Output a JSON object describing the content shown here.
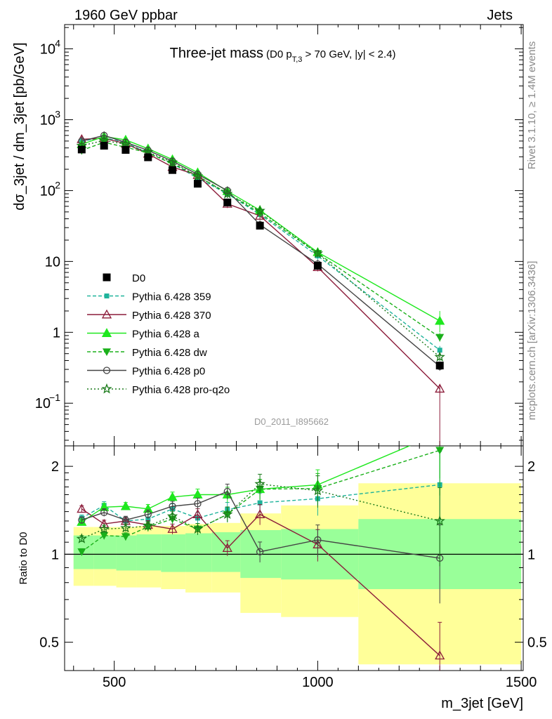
{
  "header": {
    "left": "1960 GeV ppbar",
    "right": "Jets",
    "side_top": "Rivet 3.1.10, ≥ 1.4M events",
    "side_bottom": "mcplots.cern.ch [arXiv:1306.3436]",
    "watermark": "D0_2011_I895662"
  },
  "chart_data": [
    {
      "panel": "main",
      "type": "line",
      "title": "Three-jet mass",
      "subtitle": "(D0 p_T,3 > 70 GeV, |y| < 2.4)",
      "title_parts": [
        "(D0 p",
        "T,3",
        " > 70 GeV, |y| < 2.4)"
      ],
      "xlabel": "m_3jet [GeV]",
      "ylabel": "dσ_3jet / dm_3jet [pb/GeV]",
      "xlim": [
        378,
        1505
      ],
      "ylim": [
        0.025,
        22000
      ],
      "yscale": "log",
      "xticks": [
        500,
        1000,
        1500
      ],
      "yticks": [
        {
          "v": 0.1,
          "base": "10",
          "exp": "−1"
        },
        {
          "v": 1,
          "base": "1",
          "exp": ""
        },
        {
          "v": 10,
          "base": "10",
          "exp": ""
        },
        {
          "v": 100,
          "base": "10",
          "exp": "2"
        },
        {
          "v": 1000,
          "base": "10",
          "exp": "3"
        },
        {
          "v": 10000,
          "base": "10",
          "exp": "4"
        }
      ],
      "legend_position": "lower-left",
      "reference": {
        "name": "D0",
        "x": [
          420,
          475,
          528,
          583,
          643,
          705,
          778,
          858,
          1000,
          1300
        ],
        "y": [
          380,
          430,
          375,
          295,
          195,
          125,
          68,
          32,
          8.7,
          0.34
        ]
      },
      "series": [
        {
          "name": "Pythia 6.428 359",
          "color": "#1fb39b",
          "dash": "5,3",
          "marker": "square",
          "y": [
            500,
            560,
            470,
            340,
            240,
            150,
            90,
            46,
            12,
            0.56
          ]
        },
        {
          "name": "Pythia 6.428 370",
          "color": "#8c1c3a",
          "dash": "",
          "marker": "triangle-open",
          "y": [
            530,
            545,
            460,
            330,
            215,
            165,
            65,
            44,
            8.3,
            0.16
          ]
        },
        {
          "name": "Pythia 6.428 a",
          "color": "#1ee81e",
          "dash": "",
          "marker": "triangle",
          "y": [
            450,
            580,
            520,
            390,
            275,
            180,
            98,
            53,
            13.5,
            1.45
          ]
        },
        {
          "name": "Pythia 6.428 dw",
          "color": "#1ab01a",
          "dash": "5,3",
          "marker": "triangle-down",
          "y": [
            370,
            480,
            410,
            340,
            240,
            160,
            92,
            48,
            13,
            0.85
          ]
        },
        {
          "name": "Pythia 6.428 p0",
          "color": "#444444",
          "dash": "",
          "marker": "circle-open",
          "y": [
            500,
            600,
            480,
            370,
            260,
            170,
            100,
            33,
            9.2,
            0.33
          ]
        },
        {
          "name": "Pythia 6.428 pro-q2o",
          "color": "#1a7a1a",
          "dash": "2,3",
          "marker": "star",
          "y": [
            430,
            510,
            450,
            350,
            250,
            160,
            90,
            52,
            13,
            0.45
          ]
        }
      ]
    },
    {
      "panel": "ratio",
      "type": "line",
      "ylabel": "Ratio to D0",
      "xlim": [
        378,
        1505
      ],
      "ylim": [
        0.4,
        2.35
      ],
      "yscale": "log",
      "yticks": [
        0.5,
        1,
        2
      ],
      "ytick_labels": [
        "0.5",
        "1",
        "2"
      ],
      "bins": [
        {
          "x0": 400,
          "x1": 450,
          "green": [
            0.89,
            1.16
          ],
          "yellow": [
            0.78,
            1.24
          ]
        },
        {
          "x0": 450,
          "x1": 505,
          "green": [
            0.89,
            1.16
          ],
          "yellow": [
            0.78,
            1.24
          ]
        },
        {
          "x0": 505,
          "x1": 555,
          "green": [
            0.88,
            1.16
          ],
          "yellow": [
            0.77,
            1.24
          ]
        },
        {
          "x0": 555,
          "x1": 615,
          "green": [
            0.88,
            1.17
          ],
          "yellow": [
            0.77,
            1.25
          ]
        },
        {
          "x0": 615,
          "x1": 675,
          "green": [
            0.87,
            1.17
          ],
          "yellow": [
            0.76,
            1.25
          ]
        },
        {
          "x0": 675,
          "x1": 740,
          "green": [
            0.87,
            1.18
          ],
          "yellow": [
            0.74,
            1.27
          ]
        },
        {
          "x0": 740,
          "x1": 810,
          "green": [
            0.87,
            1.19
          ],
          "yellow": [
            0.74,
            1.28
          ]
        },
        {
          "x0": 810,
          "x1": 910,
          "green": [
            0.83,
            1.21
          ],
          "yellow": [
            0.63,
            1.38
          ]
        },
        {
          "x0": 910,
          "x1": 1100,
          "green": [
            0.82,
            1.22
          ],
          "yellow": [
            0.61,
            1.47
          ]
        },
        {
          "x0": 1100,
          "x1": 1500,
          "green": [
            0.76,
            1.32
          ],
          "yellow": [
            0.42,
            1.75
          ]
        }
      ],
      "series": [
        {
          "name": "Pythia 6.428 359",
          "y": [
            1.33,
            1.47,
            1.3,
            1.32,
            1.43,
            1.33,
            1.42,
            1.5,
            1.55,
            1.73
          ]
        },
        {
          "name": "Pythia 6.428 370",
          "y": [
            1.43,
            1.27,
            1.3,
            1.26,
            1.22,
            1.37,
            1.05,
            1.37,
            1.08,
            0.45
          ]
        },
        {
          "name": "Pythia 6.428 a",
          "y": [
            1.29,
            1.45,
            1.46,
            1.43,
            1.57,
            1.6,
            1.6,
            1.67,
            1.73,
            2.6
          ]
        },
        {
          "name": "Pythia 6.428 dw",
          "y": [
            1.02,
            1.16,
            1.15,
            1.24,
            1.32,
            1.22,
            1.37,
            1.67,
            1.68,
            2.27
          ]
        },
        {
          "name": "Pythia 6.428 p0",
          "y": [
            1.31,
            1.39,
            1.31,
            1.37,
            1.46,
            1.49,
            1.64,
            1.02,
            1.12,
            0.97
          ]
        },
        {
          "name": "Pythia 6.428 pro-q2o",
          "y": [
            1.13,
            1.22,
            1.23,
            1.25,
            1.35,
            1.22,
            1.37,
            1.74,
            1.65,
            1.3
          ]
        }
      ],
      "ratio_errors": {
        "x": [
          420,
          475,
          528,
          583,
          643,
          705,
          778,
          858,
          1000,
          1300
        ],
        "err": [
          0.05,
          0.06,
          0.06,
          0.07,
          0.08,
          0.09,
          0.12,
          0.16,
          0.25,
          0.6
        ]
      }
    }
  ]
}
